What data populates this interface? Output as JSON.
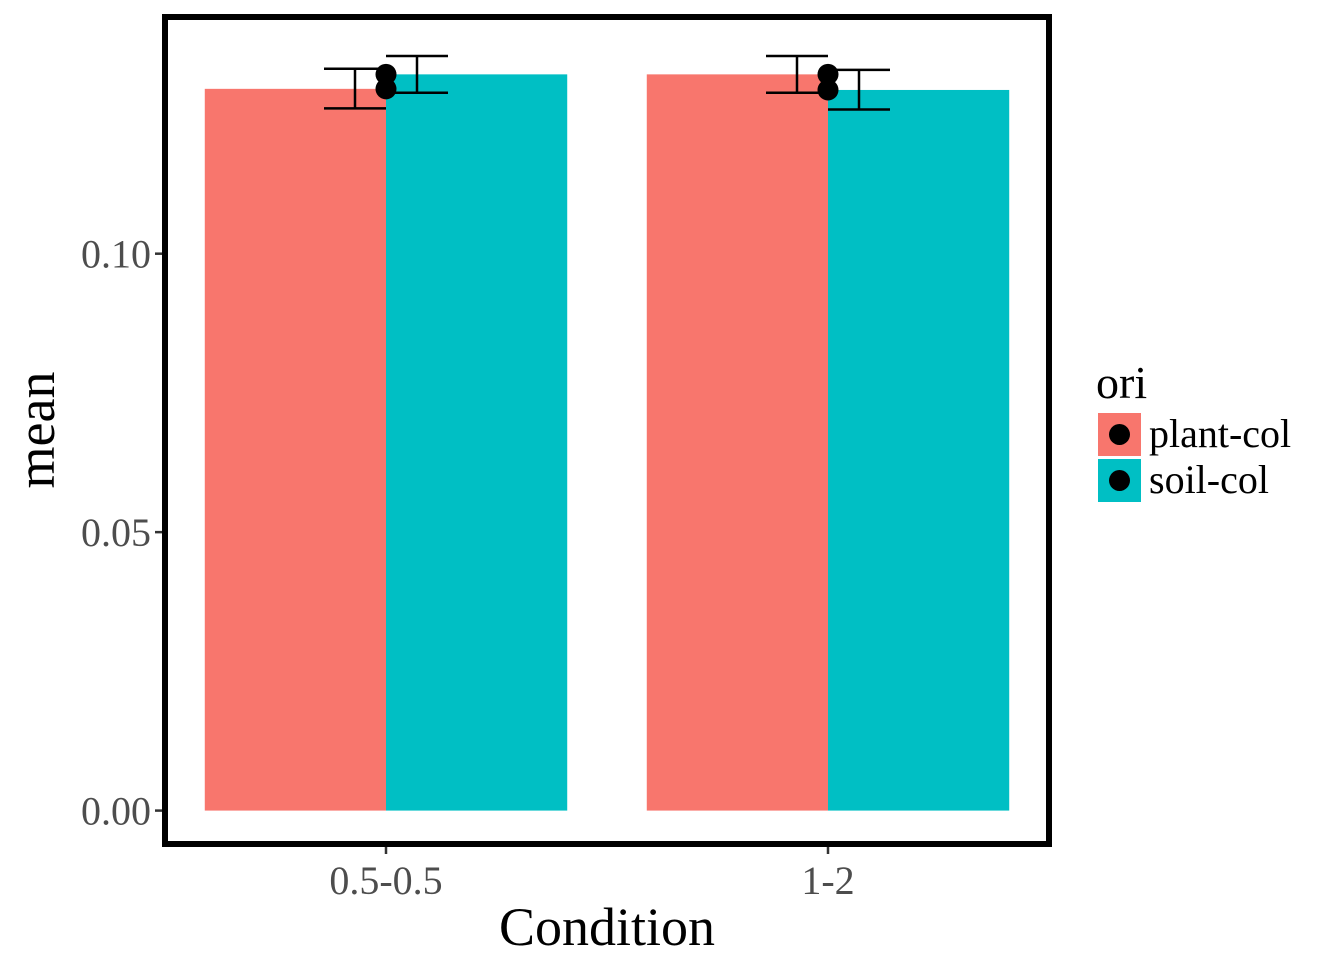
{
  "chart_data": {
    "type": "bar",
    "categories": [
      "0.5-0.5",
      "1-2"
    ],
    "series": [
      {
        "name": "plant-col",
        "values": [
          0.1296,
          0.1322
        ],
        "err_low": [
          0.1261,
          0.1289
        ],
        "err_high": [
          0.1332,
          0.1355
        ],
        "color": "#F8766D"
      },
      {
        "name": "soil-col",
        "values": [
          0.1322,
          0.1294
        ],
        "err_low": [
          0.1289,
          0.1259
        ],
        "err_high": [
          0.1355,
          0.133
        ],
        "color": "#00BFC4"
      }
    ],
    "title": "",
    "xlabel": "Condition",
    "ylabel": "mean",
    "ylim": [
      -0.006,
      0.1425
    ],
    "yticks": [
      "0.00",
      "0.05",
      "0.10"
    ],
    "ytick_values": [
      0,
      0.05,
      0.1
    ],
    "grid": false,
    "legend": {
      "title": "ori",
      "position": "right"
    },
    "point_color": "#000000"
  }
}
